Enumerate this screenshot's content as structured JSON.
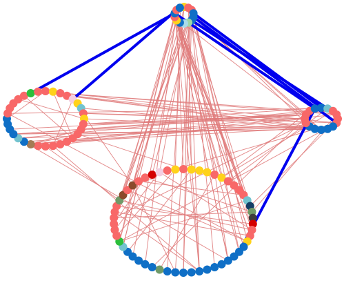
{
  "colors": {
    "background": "#ffffff",
    "weak_edge": "#e07b7b",
    "strong_edge": "#0000ee",
    "palette": {
      "salmon": "#f86868",
      "blue": "#0f6fc6",
      "yellow": "#ffd21a",
      "teal": "#72c3cf",
      "green": "#2bbf3b",
      "brown": "#8b4a2b",
      "red": "#d40000",
      "navy": "#153e66",
      "darkgray": "#3d3d3d",
      "sage": "#6f9a68",
      "olive": "#a57b54",
      "lightgreen": "#9ed5a8",
      "lightblue": "#a8dcea",
      "pink": "#f4cde0"
    }
  },
  "clusters": [
    {
      "id": "top",
      "center": [
        267,
        22
      ],
      "radii": [
        14,
        12
      ],
      "node_colors": [
        "yellow",
        "salmon",
        "salmon",
        "blue",
        "blue",
        "blue",
        "lightgreen",
        "lightblue",
        "blue",
        "yellow",
        "salmon",
        "blue",
        "salmon",
        "blue"
      ]
    },
    {
      "id": "left",
      "center": [
        66,
        172
      ],
      "radii": [
        56,
        40
      ],
      "node_colors": [
        "salmon",
        "yellow",
        "salmon",
        "salmon",
        "pink",
        "yellow",
        "teal",
        "salmon",
        "yellow",
        "salmon",
        "salmon",
        "salmon",
        "salmon",
        "salmon",
        "salmon",
        "salmon",
        "salmon",
        "salmon",
        "olive",
        "blue",
        "teal",
        "blue",
        "blue",
        "blue",
        "blue",
        "salmon",
        "salmon",
        "salmon",
        "salmon",
        "salmon",
        "green",
        "salmon"
      ]
    },
    {
      "id": "right",
      "center": [
        466,
        172
      ],
      "radii": [
        24,
        16
      ],
      "node_colors": [
        "blue",
        "teal",
        "salmon",
        "salmon",
        "salmon",
        "salmon",
        "blue",
        "blue",
        "blue",
        "blue",
        "blue",
        "salmon",
        "salmon",
        "salmon",
        "salmon",
        "blue"
      ]
    },
    {
      "id": "bottom",
      "center": [
        266,
        320
      ],
      "radii": [
        101,
        75
      ],
      "node_colors": [
        "salmon",
        "yellow",
        "yellow",
        "yellow",
        "salmon",
        "yellow",
        "salmon",
        "salmon",
        "salmon",
        "salmon",
        "teal",
        "navy",
        "sage",
        "darkgray",
        "red",
        "salmon",
        "salmon",
        "yellow",
        "blue",
        "blue",
        "blue",
        "blue",
        "blue",
        "blue",
        "blue",
        "blue",
        "blue",
        "blue",
        "blue",
        "blue",
        "sage",
        "blue",
        "blue",
        "blue",
        "blue",
        "blue",
        "teal",
        "green",
        "salmon",
        "salmon",
        "salmon",
        "salmon",
        "salmon",
        "salmon",
        "sage",
        "brown",
        "salmon",
        "brown",
        "salmon",
        "salmon",
        "red",
        "pink",
        "salmon",
        "yellow"
      ]
    }
  ],
  "edges": {
    "weak": {
      "top_bottom": 46,
      "left_right": 28,
      "left_bottom": 6,
      "bottom_right": 10,
      "top_right": 4,
      "within_left": 14,
      "within_bottom": 26
    },
    "strong": [
      [
        "top",
        12,
        "left",
        4
      ],
      [
        "top",
        11,
        "left",
        30
      ],
      [
        "top",
        3,
        "right",
        0
      ],
      [
        "top",
        4,
        "right",
        5
      ],
      [
        "top",
        5,
        "right",
        1
      ],
      [
        "top",
        11,
        "right",
        15
      ],
      [
        "right",
        15,
        "bottom",
        19
      ]
    ]
  }
}
